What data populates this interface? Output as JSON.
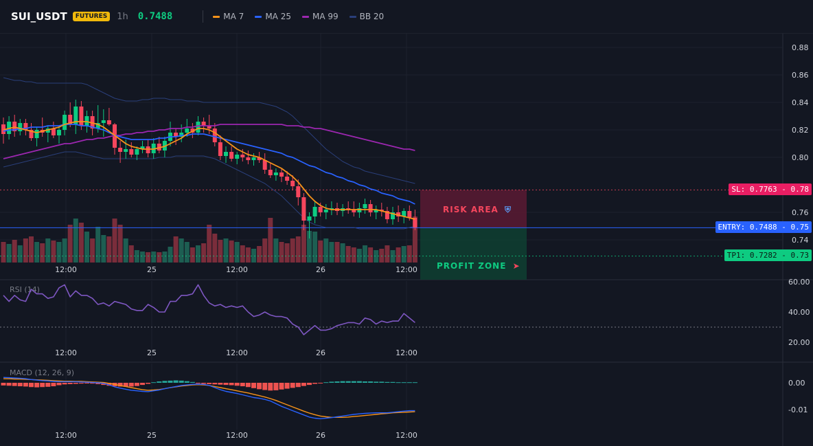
{
  "header": {
    "symbol": "SUI_USDT",
    "badge": "FUTURES",
    "timeframe": "1h",
    "price": "0.7488",
    "indicators": [
      {
        "label": "MA 7",
        "color": "#f7931a"
      },
      {
        "label": "MA 25",
        "color": "#2962ff"
      },
      {
        "label": "MA 99",
        "color": "#9c27b0"
      },
      {
        "label": "BB 20",
        "color": "#2a3f7a"
      }
    ]
  },
  "colors": {
    "up": "#0ecb81",
    "down": "#f6465d",
    "ma7": "#f7931a",
    "ma25": "#2962ff",
    "ma99": "#9c27b0",
    "bb": "#2a3f7a",
    "rsi": "#7e57c2"
  },
  "zones": {
    "risk_label": "RISK AREA",
    "profit_label": "PROFIT ZONE",
    "risk_icon": "shield-icon",
    "profit_icon": "rocket-icon"
  },
  "price_labels": {
    "sl": "SL: 0.7763",
    "sl_axis": "0.78",
    "entry": "ENTRY: 0.7488",
    "entry_axis": "0.75",
    "tp": "TP1: 0.7282",
    "tp_axis": "0.73"
  },
  "panels": {
    "rsi_title": "RSI (14)",
    "macd_title": "MACD (12, 26, 9)"
  },
  "chart_data": {
    "type": "line",
    "x_ticks": [
      "12:00",
      "25",
      "12:00",
      "26",
      "12:00"
    ],
    "price_axis": {
      "ticks": [
        "0.88",
        "0.86",
        "0.84",
        "0.82",
        "0.80",
        "0.76",
        "0.74"
      ],
      "ylim": [
        0.725,
        0.892
      ]
    },
    "levels": {
      "sl": 0.7763,
      "entry": 0.7488,
      "tp1": 0.7282
    },
    "candles": [
      [
        0.824,
        0.829,
        0.81,
        0.817
      ],
      [
        0.817,
        0.83,
        0.813,
        0.826
      ],
      [
        0.826,
        0.831,
        0.815,
        0.819
      ],
      [
        0.819,
        0.828,
        0.816,
        0.825
      ],
      [
        0.825,
        0.828,
        0.816,
        0.82
      ],
      [
        0.82,
        0.825,
        0.812,
        0.814
      ],
      [
        0.814,
        0.822,
        0.808,
        0.82
      ],
      [
        0.82,
        0.829,
        0.815,
        0.818
      ],
      [
        0.818,
        0.823,
        0.811,
        0.821
      ],
      [
        0.821,
        0.826,
        0.814,
        0.816
      ],
      [
        0.816,
        0.823,
        0.81,
        0.82
      ],
      [
        0.82,
        0.834,
        0.816,
        0.831
      ],
      [
        0.831,
        0.84,
        0.822,
        0.824
      ],
      [
        0.824,
        0.842,
        0.817,
        0.837
      ],
      [
        0.837,
        0.841,
        0.82,
        0.823
      ],
      [
        0.823,
        0.834,
        0.818,
        0.83
      ],
      [
        0.83,
        0.834,
        0.816,
        0.821
      ],
      [
        0.821,
        0.838,
        0.818,
        0.825
      ],
      [
        0.825,
        0.835,
        0.815,
        0.827
      ],
      [
        0.827,
        0.836,
        0.823,
        0.824
      ],
      [
        0.824,
        0.825,
        0.802,
        0.807
      ],
      [
        0.807,
        0.812,
        0.796,
        0.804
      ],
      [
        0.804,
        0.813,
        0.799,
        0.806
      ],
      [
        0.806,
        0.811,
        0.8,
        0.802
      ],
      [
        0.802,
        0.808,
        0.798,
        0.806
      ],
      [
        0.806,
        0.812,
        0.803,
        0.808
      ],
      [
        0.808,
        0.813,
        0.8,
        0.803
      ],
      [
        0.803,
        0.814,
        0.799,
        0.81
      ],
      [
        0.81,
        0.815,
        0.803,
        0.805
      ],
      [
        0.805,
        0.815,
        0.8,
        0.812
      ],
      [
        0.812,
        0.826,
        0.808,
        0.818
      ],
      [
        0.818,
        0.821,
        0.809,
        0.815
      ],
      [
        0.815,
        0.824,
        0.811,
        0.818
      ],
      [
        0.818,
        0.828,
        0.815,
        0.821
      ],
      [
        0.821,
        0.825,
        0.814,
        0.818
      ],
      [
        0.818,
        0.83,
        0.816,
        0.826
      ],
      [
        0.826,
        0.829,
        0.818,
        0.823
      ],
      [
        0.823,
        0.831,
        0.817,
        0.821
      ],
      [
        0.821,
        0.825,
        0.808,
        0.811
      ],
      [
        0.811,
        0.816,
        0.798,
        0.801
      ],
      [
        0.801,
        0.808,
        0.796,
        0.804
      ],
      [
        0.804,
        0.808,
        0.797,
        0.799
      ],
      [
        0.799,
        0.804,
        0.795,
        0.802
      ],
      [
        0.802,
        0.806,
        0.797,
        0.8
      ],
      [
        0.8,
        0.805,
        0.795,
        0.798
      ],
      [
        0.798,
        0.803,
        0.794,
        0.8
      ],
      [
        0.8,
        0.804,
        0.796,
        0.798
      ],
      [
        0.798,
        0.803,
        0.788,
        0.791
      ],
      [
        0.791,
        0.796,
        0.785,
        0.787
      ],
      [
        0.787,
        0.792,
        0.783,
        0.789
      ],
      [
        0.789,
        0.792,
        0.782,
        0.786
      ],
      [
        0.786,
        0.79,
        0.78,
        0.783
      ],
      [
        0.783,
        0.787,
        0.776,
        0.779
      ],
      [
        0.779,
        0.784,
        0.765,
        0.771
      ],
      [
        0.771,
        0.774,
        0.747,
        0.754
      ],
      [
        0.754,
        0.76,
        0.741,
        0.757
      ],
      [
        0.757,
        0.768,
        0.752,
        0.764
      ],
      [
        0.764,
        0.767,
        0.757,
        0.76
      ],
      [
        0.76,
        0.766,
        0.755,
        0.762
      ],
      [
        0.762,
        0.768,
        0.758,
        0.763
      ],
      [
        0.763,
        0.767,
        0.758,
        0.761
      ],
      [
        0.761,
        0.766,
        0.757,
        0.763
      ],
      [
        0.763,
        0.768,
        0.759,
        0.762
      ],
      [
        0.762,
        0.768,
        0.757,
        0.76
      ],
      [
        0.76,
        0.767,
        0.756,
        0.763
      ],
      [
        0.763,
        0.77,
        0.759,
        0.766
      ],
      [
        0.766,
        0.769,
        0.757,
        0.76
      ],
      [
        0.76,
        0.765,
        0.755,
        0.762
      ],
      [
        0.762,
        0.767,
        0.757,
        0.761
      ],
      [
        0.761,
        0.764,
        0.752,
        0.755
      ],
      [
        0.755,
        0.764,
        0.751,
        0.76
      ],
      [
        0.76,
        0.765,
        0.753,
        0.757
      ],
      [
        0.757,
        0.763,
        0.752,
        0.761
      ],
      [
        0.761,
        0.765,
        0.754,
        0.756
      ],
      [
        0.756,
        0.762,
        0.747,
        0.749
      ]
    ],
    "ma7": [
      0.82,
      0.821,
      0.822,
      0.821,
      0.82,
      0.819,
      0.818,
      0.819,
      0.82,
      0.821,
      0.822,
      0.824,
      0.825,
      0.826,
      0.826,
      0.826,
      0.825,
      0.824,
      0.822,
      0.819,
      0.816,
      0.813,
      0.81,
      0.808,
      0.807,
      0.806,
      0.806,
      0.806,
      0.807,
      0.808,
      0.81,
      0.812,
      0.814,
      0.817,
      0.819,
      0.821,
      0.821,
      0.82,
      0.818,
      0.815,
      0.812,
      0.809,
      0.806,
      0.804,
      0.802,
      0.801,
      0.8,
      0.798,
      0.796,
      0.794,
      0.792,
      0.789,
      0.786,
      0.782,
      0.777,
      0.772,
      0.768,
      0.765,
      0.763,
      0.762,
      0.762,
      0.762,
      0.762,
      0.762,
      0.762,
      0.762,
      0.762,
      0.762,
      0.761,
      0.76,
      0.759,
      0.758,
      0.757,
      0.756,
      0.755
    ],
    "ma25": [
      0.819,
      0.82,
      0.82,
      0.821,
      0.821,
      0.822,
      0.822,
      0.822,
      0.823,
      0.823,
      0.823,
      0.824,
      0.824,
      0.824,
      0.823,
      0.823,
      0.822,
      0.821,
      0.82,
      0.818,
      0.816,
      0.815,
      0.814,
      0.813,
      0.813,
      0.813,
      0.813,
      0.813,
      0.814,
      0.814,
      0.815,
      0.815,
      0.816,
      0.816,
      0.817,
      0.817,
      0.817,
      0.816,
      0.815,
      0.814,
      0.813,
      0.812,
      0.811,
      0.81,
      0.809,
      0.808,
      0.807,
      0.806,
      0.805,
      0.804,
      0.803,
      0.801,
      0.8,
      0.798,
      0.796,
      0.794,
      0.793,
      0.791,
      0.789,
      0.788,
      0.786,
      0.785,
      0.783,
      0.782,
      0.78,
      0.779,
      0.777,
      0.776,
      0.774,
      0.773,
      0.772,
      0.77,
      0.769,
      0.768,
      0.766
    ],
    "ma99": [
      0.799,
      0.8,
      0.801,
      0.802,
      0.803,
      0.804,
      0.805,
      0.806,
      0.807,
      0.808,
      0.809,
      0.81,
      0.81,
      0.811,
      0.812,
      0.813,
      0.813,
      0.814,
      0.814,
      0.815,
      0.816,
      0.816,
      0.817,
      0.817,
      0.818,
      0.818,
      0.819,
      0.819,
      0.82,
      0.82,
      0.821,
      0.821,
      0.821,
      0.822,
      0.822,
      0.823,
      0.823,
      0.823,
      0.823,
      0.824,
      0.824,
      0.824,
      0.824,
      0.824,
      0.824,
      0.824,
      0.824,
      0.824,
      0.824,
      0.824,
      0.824,
      0.823,
      0.823,
      0.823,
      0.822,
      0.822,
      0.821,
      0.821,
      0.82,
      0.819,
      0.818,
      0.817,
      0.816,
      0.815,
      0.814,
      0.813,
      0.812,
      0.811,
      0.81,
      0.809,
      0.808,
      0.807,
      0.806,
      0.806,
      0.805
    ],
    "bb_upper": [
      0.858,
      0.857,
      0.856,
      0.856,
      0.855,
      0.855,
      0.854,
      0.854,
      0.854,
      0.854,
      0.854,
      0.854,
      0.854,
      0.854,
      0.854,
      0.853,
      0.851,
      0.849,
      0.847,
      0.845,
      0.843,
      0.842,
      0.841,
      0.841,
      0.841,
      0.842,
      0.842,
      0.843,
      0.843,
      0.843,
      0.842,
      0.842,
      0.842,
      0.841,
      0.841,
      0.841,
      0.84,
      0.84,
      0.84,
      0.84,
      0.84,
      0.84,
      0.84,
      0.84,
      0.84,
      0.84,
      0.84,
      0.839,
      0.838,
      0.837,
      0.835,
      0.833,
      0.83,
      0.826,
      0.822,
      0.818,
      0.814,
      0.81,
      0.806,
      0.803,
      0.8,
      0.797,
      0.795,
      0.793,
      0.792,
      0.79,
      0.789,
      0.788,
      0.787,
      0.786,
      0.785,
      0.784,
      0.783,
      0.782,
      0.781
    ],
    "bb_lower": [
      0.793,
      0.794,
      0.795,
      0.796,
      0.797,
      0.798,
      0.799,
      0.8,
      0.801,
      0.802,
      0.803,
      0.804,
      0.804,
      0.804,
      0.803,
      0.802,
      0.801,
      0.8,
      0.799,
      0.799,
      0.799,
      0.799,
      0.799,
      0.799,
      0.799,
      0.799,
      0.799,
      0.799,
      0.8,
      0.8,
      0.8,
      0.801,
      0.801,
      0.801,
      0.801,
      0.801,
      0.801,
      0.8,
      0.799,
      0.797,
      0.795,
      0.793,
      0.791,
      0.789,
      0.787,
      0.785,
      0.783,
      0.781,
      0.778,
      0.775,
      0.772,
      0.768,
      0.764,
      0.76,
      0.756,
      0.753,
      0.751,
      0.75,
      0.749,
      0.749,
      0.749,
      0.749,
      0.749,
      0.749,
      0.748,
      0.748,
      0.748,
      0.748,
      0.748,
      0.748,
      0.748,
      0.748,
      0.748,
      0.749,
      0.75
    ],
    "volume": [
      30,
      27,
      33,
      25,
      35,
      38,
      30,
      28,
      35,
      32,
      30,
      35,
      55,
      64,
      58,
      45,
      35,
      52,
      40,
      38,
      64,
      55,
      35,
      25,
      18,
      16,
      15,
      16,
      15,
      16,
      23,
      38,
      35,
      30,
      22,
      25,
      28,
      55,
      42,
      33,
      35,
      32,
      30,
      25,
      22,
      20,
      24,
      35,
      65,
      35,
      30,
      28,
      35,
      38,
      55,
      46,
      45,
      32,
      35,
      30,
      30,
      28,
      24,
      22,
      20,
      25,
      22,
      18,
      20,
      25,
      18,
      22,
      24,
      25,
      67
    ],
    "rsi": {
      "ticks": [
        "60.00",
        "40.00",
        "20.00"
      ],
      "ylim": [
        18,
        62
      ],
      "line": 30,
      "values": [
        51,
        47,
        51,
        48,
        47,
        55,
        52,
        52,
        49,
        50,
        56,
        58,
        50,
        54,
        51,
        51,
        49,
        45,
        46,
        44,
        47,
        46,
        45,
        42,
        41,
        41,
        45,
        43,
        40,
        40,
        47,
        47,
        51,
        51,
        52,
        58,
        51,
        46,
        44,
        45,
        43,
        44,
        43,
        44,
        40,
        37,
        38,
        40,
        38,
        37,
        37,
        36,
        32,
        30,
        25,
        28,
        31,
        28,
        28,
        29,
        31,
        32,
        33,
        33,
        32,
        36,
        35,
        32,
        34,
        33,
        34,
        34,
        39,
        36,
        33
      ]
    },
    "macd": {
      "ticks": [
        "0.00",
        "-0.01"
      ],
      "ylim": [
        -0.0145,
        0.0035
      ],
      "macd_line": [
        0.002,
        0.0019,
        0.0018,
        0.0017,
        0.0015,
        0.0012,
        0.001,
        0.0008,
        0.0007,
        0.0005,
        0.0004,
        0.0004,
        0.0004,
        0.0004,
        0.0003,
        0.0002,
        0.0001,
        0.0,
        -0.0002,
        -0.0008,
        -0.0015,
        -0.002,
        -0.0024,
        -0.0028,
        -0.003,
        -0.0032,
        -0.0033,
        -0.003,
        -0.0027,
        -0.0022,
        -0.0018,
        -0.0014,
        -0.001,
        -0.0008,
        -0.0006,
        -0.0005,
        -0.0006,
        -0.001,
        -0.0018,
        -0.0026,
        -0.0032,
        -0.0036,
        -0.004,
        -0.0045,
        -0.005,
        -0.0055,
        -0.0058,
        -0.0062,
        -0.0068,
        -0.0078,
        -0.0088,
        -0.0096,
        -0.0104,
        -0.0112,
        -0.012,
        -0.0128,
        -0.0132,
        -0.0134,
        -0.0132,
        -0.013,
        -0.0127,
        -0.0124,
        -0.0121,
        -0.0118,
        -0.0116,
        -0.0114,
        -0.0113,
        -0.0112,
        -0.0112,
        -0.0112,
        -0.011,
        -0.0108,
        -0.0106,
        -0.0104,
        -0.0104
      ],
      "signal_line": [
        0.0015,
        0.0015,
        0.0014,
        0.0014,
        0.0013,
        0.0012,
        0.0011,
        0.001,
        0.0009,
        0.0008,
        0.0007,
        0.0006,
        0.0006,
        0.0005,
        0.0005,
        0.0004,
        0.0003,
        0.0002,
        0.0001,
        -0.0002,
        -0.0006,
        -0.001,
        -0.0014,
        -0.0018,
        -0.0022,
        -0.0026,
        -0.0028,
        -0.0027,
        -0.0025,
        -0.0022,
        -0.0018,
        -0.0015,
        -0.0012,
        -0.001,
        -0.0008,
        -0.0007,
        -0.0008,
        -0.001,
        -0.0014,
        -0.0018,
        -0.0022,
        -0.0026,
        -0.003,
        -0.0034,
        -0.0038,
        -0.0043,
        -0.0048,
        -0.0053,
        -0.0059,
        -0.0066,
        -0.0074,
        -0.0082,
        -0.009,
        -0.0098,
        -0.0106,
        -0.0113,
        -0.0119,
        -0.0124,
        -0.0127,
        -0.0129,
        -0.0129,
        -0.0129,
        -0.0128,
        -0.0126,
        -0.0124,
        -0.0122,
        -0.012,
        -0.0118,
        -0.0116,
        -0.0114,
        -0.0112,
        -0.0111,
        -0.011,
        -0.0109,
        -0.0108
      ],
      "histogram": [
        -0.001,
        -0.0011,
        -0.0012,
        -0.0013,
        -0.0014,
        -0.0016,
        -0.0017,
        -0.0016,
        -0.0015,
        -0.0013,
        -0.0009,
        -0.0006,
        -0.0005,
        -0.0004,
        -0.0003,
        -0.0002,
        -0.0003,
        -0.0005,
        -0.0008,
        -0.0011,
        -0.0013,
        -0.0014,
        -0.0015,
        -0.0014,
        -0.0012,
        -0.0008,
        -0.0004,
        0.0002,
        0.0005,
        0.0007,
        0.0008,
        0.0009,
        0.0008,
        0.0006,
        0.0003,
        -0.0002,
        -0.0004,
        -0.0005,
        -0.0006,
        -0.0007,
        -0.0008,
        -0.0009,
        -0.0011,
        -0.0013,
        -0.0016,
        -0.002,
        -0.0024,
        -0.0027,
        -0.0029,
        -0.0028,
        -0.0025,
        -0.0022,
        -0.0019,
        -0.0016,
        -0.0012,
        -0.0008,
        -0.0004,
        -0.0001,
        0.0002,
        0.0004,
        0.0005,
        0.0006,
        0.0006,
        0.0006,
        0.0006,
        0.0005,
        0.0005,
        0.0004,
        0.0004,
        0.0003,
        0.0003,
        0.0002,
        0.0002,
        0.0002,
        0.0002
      ]
    }
  }
}
